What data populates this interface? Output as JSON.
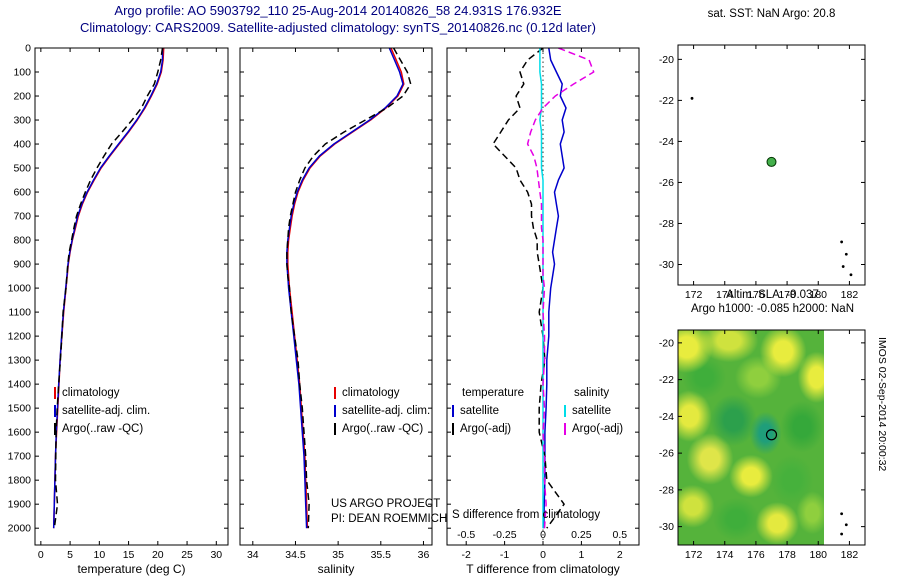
{
  "title": {
    "line1": "Argo profile: AO 5903792_110 25-Aug-2014 20140826_58 24.931S 176.932E",
    "line2": "Climatology: CARS2009. Satellite-adjusted climatology: synTS_20140826.nc (0.12d later)"
  },
  "colors": {
    "title_text": "#000080",
    "climatology": "#e60000",
    "satellite": "#0000cc",
    "argo": "#000000",
    "sal_satellite": "#00dde8",
    "sal_argo": "#e500e5",
    "marker_fill": "#44b04c"
  },
  "annotations": {
    "project_line1": "US ARGO PROJECT",
    "project_line2": "PI: DEAN ROEMMICH",
    "imos_stamp": "IMOS 02-Sep-2014 20:00:32"
  },
  "chart_data": [
    {
      "id": "temp",
      "type": "line",
      "xlabel": "temperature (deg C)",
      "xlim": [
        -1,
        32
      ],
      "xticks": [
        0,
        5,
        10,
        15,
        20,
        25,
        30
      ],
      "ylim": [
        0,
        2070
      ],
      "yticks": [
        0,
        100,
        200,
        300,
        400,
        500,
        600,
        700,
        800,
        900,
        1000,
        1100,
        1200,
        1300,
        1400,
        1500,
        1600,
        1700,
        1800,
        1900,
        2000
      ],
      "ytick_labels": true,
      "depth": [
        0,
        50,
        100,
        150,
        200,
        250,
        300,
        350,
        400,
        450,
        500,
        550,
        600,
        650,
        700,
        750,
        800,
        850,
        900,
        950,
        1000,
        1100,
        1200,
        1300,
        1400,
        1500,
        1600,
        1700,
        1800,
        1900,
        2000
      ],
      "series": [
        {
          "id": "climatology",
          "color": "#e60000",
          "dash": "solid",
          "values": [
            21.0,
            20.9,
            20.6,
            19.9,
            18.9,
            17.8,
            16.5,
            15.0,
            13.4,
            11.8,
            10.3,
            9.1,
            8.0,
            7.1,
            6.4,
            5.9,
            5.4,
            5.0,
            4.7,
            4.5,
            4.3,
            3.9,
            3.6,
            3.3,
            3.1,
            2.9,
            2.7,
            2.5,
            2.4,
            2.3,
            2.2
          ]
        },
        {
          "id": "satellite-adjusted-climatology",
          "color": "#0000cc",
          "dash": "solid",
          "values": [
            20.8,
            20.8,
            20.5,
            19.8,
            18.8,
            17.7,
            16.4,
            14.9,
            13.3,
            11.7,
            10.2,
            9.0,
            7.9,
            7.0,
            6.3,
            5.8,
            5.35,
            4.95,
            4.65,
            4.45,
            4.25,
            3.85,
            3.55,
            3.3,
            3.05,
            2.85,
            2.65,
            2.5,
            2.4,
            2.3,
            2.2
          ]
        },
        {
          "id": "argo-raw-qc",
          "color": "#000000",
          "dash": "dashed",
          "values": [
            20.8,
            20.5,
            20.0,
            19.4,
            18.2,
            17.2,
            15.6,
            13.9,
            12.1,
            10.8,
            9.6,
            8.5,
            7.6,
            6.8,
            6.1,
            5.65,
            5.25,
            4.85,
            4.6,
            4.45,
            4.3,
            3.8,
            3.6,
            3.35,
            3.05,
            2.8,
            2.6,
            2.55,
            2.5,
            2.85,
            2.3
          ]
        }
      ],
      "legend": [
        {
          "label": "climatology",
          "color": "#e60000",
          "dash": "solid"
        },
        {
          "label": "satellite-adj. clim.",
          "color": "#0000cc",
          "dash": "solid"
        },
        {
          "label": "Argo(..raw -QC)",
          "color": "#000000",
          "dash": "dashed"
        }
      ]
    },
    {
      "id": "sal",
      "type": "line",
      "xlabel": "salinity",
      "xlim": [
        33.85,
        36.1
      ],
      "xticks": [
        34,
        34.5,
        35,
        35.5,
        36
      ],
      "ylim": [
        0,
        2070
      ],
      "yticks": [
        0,
        100,
        200,
        300,
        400,
        500,
        600,
        700,
        800,
        900,
        1000,
        1100,
        1200,
        1300,
        1400,
        1500,
        1600,
        1700,
        1800,
        1900,
        2000
      ],
      "ytick_labels": false,
      "depth": [
        0,
        50,
        100,
        150,
        200,
        250,
        300,
        350,
        400,
        450,
        500,
        550,
        600,
        650,
        700,
        750,
        800,
        850,
        900,
        950,
        1000,
        1100,
        1200,
        1300,
        1400,
        1500,
        1600,
        1700,
        1800,
        1900,
        2000
      ],
      "series": [
        {
          "id": "climatology",
          "color": "#e60000",
          "dash": "solid",
          "values": [
            35.62,
            35.68,
            35.74,
            35.77,
            35.7,
            35.56,
            35.38,
            35.17,
            34.96,
            34.79,
            34.67,
            34.59,
            34.53,
            34.49,
            34.46,
            34.44,
            34.42,
            34.41,
            34.41,
            34.42,
            34.43,
            34.46,
            34.49,
            34.52,
            34.55,
            34.57,
            34.59,
            34.61,
            34.62,
            34.63,
            34.64
          ]
        },
        {
          "id": "satellite-adjusted-climatology",
          "color": "#0000cc",
          "dash": "solid",
          "values": [
            35.6,
            35.66,
            35.72,
            35.76,
            35.69,
            35.55,
            35.37,
            35.16,
            34.95,
            34.78,
            34.66,
            34.58,
            34.52,
            34.48,
            34.45,
            34.43,
            34.41,
            34.4,
            34.4,
            34.41,
            34.42,
            34.45,
            34.48,
            34.51,
            34.54,
            34.56,
            34.58,
            34.6,
            34.61,
            34.62,
            34.63
          ]
        },
        {
          "id": "argo-raw-qc",
          "color": "#000000",
          "dash": "dashed",
          "values": [
            35.65,
            35.73,
            35.81,
            35.85,
            35.76,
            35.57,
            35.32,
            35.07,
            34.85,
            34.71,
            34.61,
            34.55,
            34.5,
            34.47,
            34.44,
            34.42,
            34.41,
            34.4,
            34.4,
            34.41,
            34.43,
            34.45,
            34.49,
            34.53,
            34.55,
            34.58,
            34.6,
            34.62,
            34.63,
            34.66,
            34.65
          ]
        }
      ],
      "legend": [
        {
          "label": "climatology",
          "color": "#e60000",
          "dash": "solid"
        },
        {
          "label": "satellite-adj. clim.",
          "color": "#0000cc",
          "dash": "solid"
        },
        {
          "label": "Argo(..raw -QC)",
          "color": "#000000",
          "dash": "dashed"
        }
      ]
    },
    {
      "id": "diff",
      "type": "line",
      "xlabel": "T difference from climatology",
      "s_label": "S difference from climatology",
      "xlim": [
        -2.5,
        2.5
      ],
      "xticks": [
        -2,
        -1,
        0,
        1,
        2
      ],
      "s_ticks": [
        -0.5,
        -0.25,
        0,
        0.25,
        0.5
      ],
      "zero_line": true,
      "ylim": [
        0,
        2070
      ],
      "yticks": [
        0,
        100,
        200,
        300,
        400,
        500,
        600,
        700,
        800,
        900,
        1000,
        1100,
        1200,
        1300,
        1400,
        1500,
        1600,
        1700,
        1800,
        1900,
        2000
      ],
      "ytick_labels": false,
      "depth": [
        0,
        50,
        100,
        150,
        200,
        250,
        300,
        350,
        400,
        450,
        500,
        550,
        600,
        650,
        700,
        750,
        800,
        850,
        900,
        950,
        1000,
        1100,
        1200,
        1300,
        1400,
        1500,
        1600,
        1700,
        1800,
        1900,
        2000
      ],
      "series": [
        {
          "id": "t-diff-satellite",
          "color": "#0000cc",
          "dash": "solid",
          "scale": 1,
          "values": [
            0.15,
            0.2,
            0.35,
            0.5,
            0.45,
            0.6,
            0.5,
            0.55,
            0.45,
            0.5,
            0.55,
            0.4,
            0.3,
            0.35,
            0.4,
            0.35,
            0.3,
            0.25,
            0.3,
            0.25,
            0.2,
            0.15,
            0.15,
            0.1,
            0.1,
            0.08,
            0.05,
            0.05,
            0.05,
            0.03,
            0.02
          ]
        },
        {
          "id": "t-diff-argo",
          "color": "#000000",
          "dash": "dashed",
          "scale": 1,
          "values": [
            0,
            -0.4,
            -0.6,
            -0.5,
            -0.7,
            -0.6,
            -0.9,
            -1.1,
            -1.3,
            -1.0,
            -0.7,
            -0.6,
            -0.4,
            -0.3,
            -0.3,
            -0.25,
            -0.15,
            -0.15,
            -0.1,
            -0.05,
            0,
            -0.1,
            0,
            0.05,
            -0.05,
            -0.1,
            -0.1,
            0.05,
            0.1,
            0.55,
            0.1
          ]
        },
        {
          "id": "s-diff-satellite",
          "color": "#00dde8",
          "dash": "solid",
          "scale": 4,
          "values": [
            -0.02,
            -0.02,
            -0.02,
            -0.01,
            -0.01,
            -0.01,
            -0.02,
            -0.01,
            -0.01,
            -0.01,
            -0.01,
            0,
            0,
            0,
            0,
            0,
            0,
            0,
            0,
            0,
            0,
            0,
            0,
            0,
            0,
            0,
            0,
            0,
            0,
            0,
            0
          ]
        },
        {
          "id": "s-diff-argo",
          "color": "#e500e5",
          "dash": "dashed",
          "scale": 4,
          "values": [
            0.1,
            0.3,
            0.33,
            0.2,
            0.08,
            0,
            -0.05,
            -0.08,
            -0.1,
            -0.06,
            -0.04,
            -0.03,
            -0.02,
            -0.01,
            -0.01,
            -0.01,
            0,
            0,
            0,
            0,
            0.01,
            0,
            0.01,
            0.01,
            0,
            0.01,
            0,
            0.01,
            0.01,
            0.02,
            0.01
          ]
        }
      ],
      "legend_headers": [
        "temperature",
        "salinity"
      ],
      "legend_t": [
        {
          "label": "satellite",
          "color": "#0000cc",
          "dash": "solid"
        },
        {
          "label": "Argo(-adj)",
          "color": "#000000",
          "dash": "dashed"
        }
      ],
      "legend_s": [
        {
          "label": "satellite",
          "color": "#00dde8",
          "dash": "solid"
        },
        {
          "label": "Argo(-adj)",
          "color": "#e500e5",
          "dash": "dashed"
        }
      ]
    },
    {
      "id": "sst",
      "type": "scatter",
      "title": "sat. SST: NaN Argo: 20.8",
      "xlim": [
        171,
        183
      ],
      "ylim": [
        -19.3,
        -31
      ],
      "xticks": [
        172,
        174,
        176,
        178,
        180,
        182
      ],
      "yticks": [
        -20,
        -22,
        -24,
        -26,
        -28,
        -30
      ],
      "ytick_labels": true,
      "marker": {
        "lon": 177,
        "lat": -25
      },
      "islands": [
        [
          171.9,
          -21.9
        ],
        [
          181.5,
          -28.9
        ],
        [
          181.8,
          -29.5
        ],
        [
          181.6,
          -30.1
        ],
        [
          182.1,
          -30.5
        ]
      ]
    },
    {
      "id": "sla",
      "type": "heatmap",
      "title_line1": "Altim. SLA: -0.037",
      "title_line2": "Argo h1000: -0.085 h2000: NaN",
      "xlim": [
        171,
        183
      ],
      "ylim": [
        -19.3,
        -31
      ],
      "xticks": [
        172,
        174,
        176,
        178,
        180,
        182
      ],
      "yticks": [
        -20,
        -22,
        -24,
        -26,
        -28,
        -30
      ],
      "ytick_labels": true,
      "marker": {
        "lon": 177,
        "lat": -25
      },
      "islands": [
        [
          181.5,
          -29.3
        ],
        [
          181.8,
          -29.9
        ],
        [
          181.5,
          -30.4
        ]
      ],
      "heat": {
        "base": "#55b33b",
        "blobs": [
          {
            "x": 0.06,
            "y": 0.08,
            "rx": 0.18,
            "ry": 0.12,
            "c": "#e8ec3e"
          },
          {
            "x": 0.35,
            "y": 0.05,
            "rx": 0.2,
            "ry": 0.1,
            "c": "#cfe23e"
          },
          {
            "x": 0.72,
            "y": 0.1,
            "rx": 0.16,
            "ry": 0.12,
            "c": "#e8ec3e"
          },
          {
            "x": 0.95,
            "y": 0.22,
            "rx": 0.13,
            "ry": 0.12,
            "c": "#e8ec3e"
          },
          {
            "x": 0.18,
            "y": 0.22,
            "rx": 0.15,
            "ry": 0.1,
            "c": "#3fae3b"
          },
          {
            "x": 0.55,
            "y": 0.22,
            "rx": 0.16,
            "ry": 0.1,
            "c": "#8fcf3e"
          },
          {
            "x": 0.08,
            "y": 0.4,
            "rx": 0.15,
            "ry": 0.12,
            "c": "#e4e93f"
          },
          {
            "x": 0.38,
            "y": 0.42,
            "rx": 0.16,
            "ry": 0.12,
            "c": "#2ca04c"
          },
          {
            "x": 0.6,
            "y": 0.48,
            "rx": 0.11,
            "ry": 0.1,
            "c": "#1f9e7a"
          },
          {
            "x": 0.85,
            "y": 0.45,
            "rx": 0.15,
            "ry": 0.12,
            "c": "#35a83a"
          },
          {
            "x": 0.22,
            "y": 0.6,
            "rx": 0.16,
            "ry": 0.12,
            "c": "#dfe549"
          },
          {
            "x": 0.5,
            "y": 0.68,
            "rx": 0.15,
            "ry": 0.1,
            "c": "#e8ec3e"
          },
          {
            "x": 0.78,
            "y": 0.7,
            "rx": 0.15,
            "ry": 0.12,
            "c": "#46b13c"
          },
          {
            "x": 0.1,
            "y": 0.82,
            "rx": 0.15,
            "ry": 0.1,
            "c": "#cfe23e"
          },
          {
            "x": 0.4,
            "y": 0.88,
            "rx": 0.16,
            "ry": 0.1,
            "c": "#3fae3b"
          },
          {
            "x": 0.68,
            "y": 0.9,
            "rx": 0.15,
            "ry": 0.1,
            "c": "#e4e93f"
          },
          {
            "x": 0.92,
            "y": 0.85,
            "rx": 0.11,
            "ry": 0.1,
            "c": "#8fcf3e"
          }
        ]
      }
    }
  ]
}
